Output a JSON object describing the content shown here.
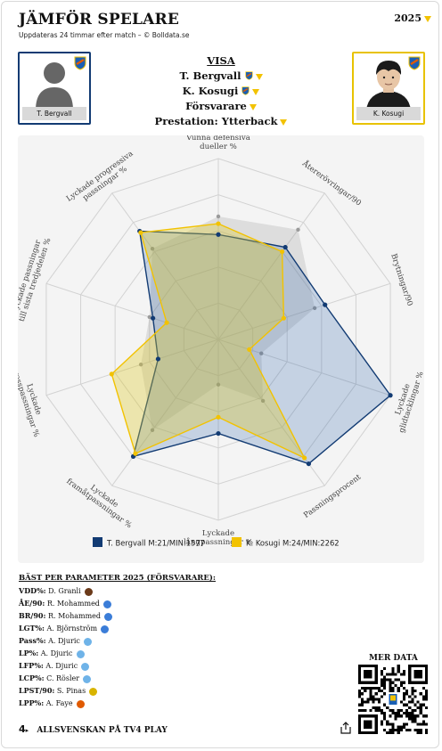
{
  "header": {
    "title": "JÄMFÖR SPELARE",
    "subtitle": "Uppdateras 24 timmar efter match – © Bolldata.se",
    "year": "2025"
  },
  "players": {
    "left_name": "T. Bergvall",
    "right_name": "K. Kosugi"
  },
  "visa": {
    "heading": "VISA",
    "player1": "T. Bergvall",
    "player2": "K. Kosugi",
    "position": "Försvarare",
    "presentation": "Prestation: Ytterback"
  },
  "colors": {
    "player1": "#123b73",
    "player2": "#f2c200"
  },
  "chart_data": {
    "type": "radar",
    "axes": [
      [
        "Vunna defensiva",
        "dueller %"
      ],
      [
        "Återerövringar/90"
      ],
      [
        "Brytningar/90"
      ],
      [
        "Lyckade",
        "glidtacklingar %"
      ],
      [
        "Passningsprocent"
      ],
      [
        "Lyckade",
        "långpassningar %"
      ],
      [
        "Lyckade",
        "framåtpassningar %"
      ],
      [
        "Lyckade",
        "crosspassningar %"
      ],
      [
        "Lyckade passningar",
        "till sista tredjedelen %"
      ],
      [
        "Lyckade progressiva",
        "passningar %"
      ]
    ],
    "series": [
      {
        "name": "T. Bergvall M:21/MIN:1577",
        "values": [
          0.58,
          0.63,
          0.62,
          1.0,
          0.85,
          0.52,
          0.8,
          0.35,
          0.38,
          0.74
        ]
      },
      {
        "name": "K. Kosugi M:24/MIN:2262",
        "values": [
          0.64,
          0.6,
          0.38,
          0.18,
          0.81,
          0.43,
          0.78,
          0.62,
          0.3,
          0.73
        ]
      }
    ],
    "reference": [
      0.68,
      0.75,
      0.56,
      0.25,
      0.42,
      0.25,
      0.62,
      0.45,
      0.4,
      0.62
    ],
    "rings": 5,
    "legend_position": "bottom"
  },
  "best": {
    "heading": "BÄST PER PARAMETER 2025 (FÖRSVARARE):",
    "rows": [
      {
        "key": "VDD%",
        "value": "D. Granli",
        "color": "#6b3a1a"
      },
      {
        "key": "ÅE/90",
        "value": "R. Mohammed",
        "color": "#3b7dd8"
      },
      {
        "key": "BR/90",
        "value": "R. Mohammed",
        "color": "#3b7dd8"
      },
      {
        "key": "LGT%",
        "value": "A. Björnström",
        "color": "#3b7dd8"
      },
      {
        "key": "Pass%",
        "value": "A. Djuric",
        "color": "#6fb3e8"
      },
      {
        "key": "LP%",
        "value": "A. Djuric",
        "color": "#6fb3e8"
      },
      {
        "key": "LFP%",
        "value": "A. Djuric",
        "color": "#6fb3e8"
      },
      {
        "key": "LCP%",
        "value": "C. Rösler",
        "color": "#6fb3e8"
      },
      {
        "key": "LPST/90",
        "value": "S. Pinas",
        "color": "#d8b400"
      },
      {
        "key": "LPP%",
        "value": "A. Faye",
        "color": "#e05a00"
      }
    ]
  },
  "more": {
    "label": "MER DATA"
  },
  "footer": {
    "text": "ALLSVENSKAN PÅ TV4 PLAY"
  }
}
